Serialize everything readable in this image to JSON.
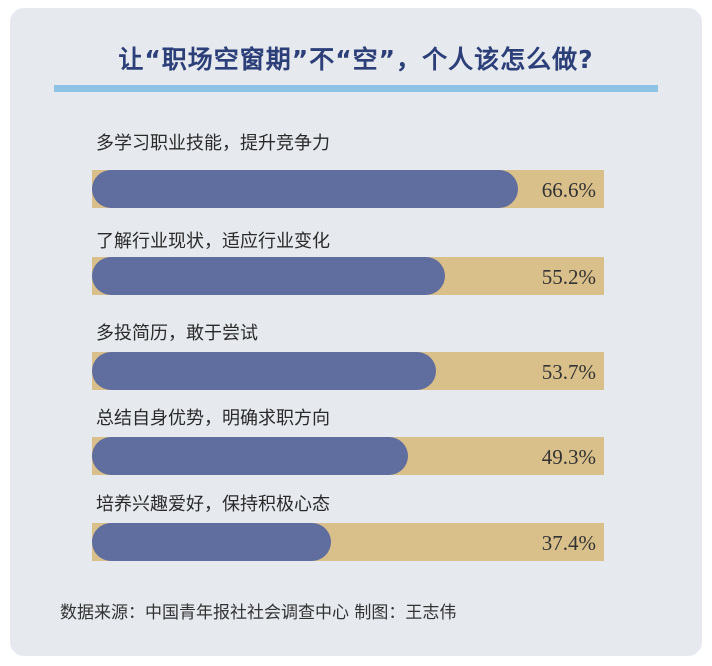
{
  "title": "让“职场空窗期”不“空”，个人该怎么做?",
  "source": "数据来源：中国青年报社社会调查中心   制图：王志伟",
  "colors": {
    "bar_fill": "#5f6e9e",
    "bar_track": "#d9bf8a",
    "title": "#2c3f78",
    "rule": "#8fc3e6",
    "background": "#e6e9ee"
  },
  "chart_data": {
    "type": "bar",
    "orientation": "horizontal",
    "categories": [
      "多学习职业技能，提升竞争力",
      "了解行业现状，适应行业变化",
      "多投简历，敢于尝试",
      "总结自身优势，明确求职方向",
      "培养兴趣爱好，保持积极心态"
    ],
    "values": [
      66.6,
      55.2,
      53.7,
      49.3,
      37.4
    ],
    "value_labels": [
      "66.6%",
      "55.2%",
      "53.7%",
      "49.3%",
      "37.4%"
    ],
    "unit": "%",
    "xlim": [
      0,
      80
    ],
    "grid": false,
    "legend": "none"
  }
}
